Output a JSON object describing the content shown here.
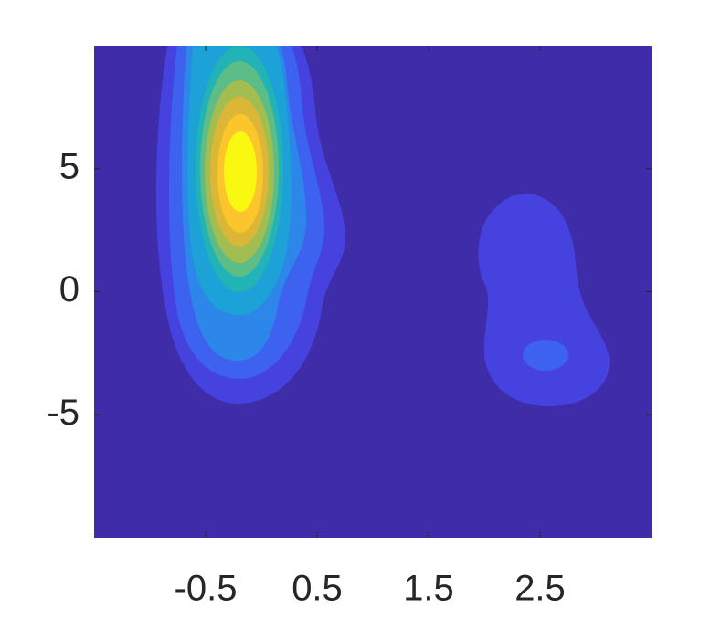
{
  "chart_data": {
    "type": "contourf",
    "xlim": [
      -1.5,
      3.5
    ],
    "xticks": [
      -0.5,
      0.5,
      1.5,
      2.5
    ],
    "ylim": [
      -10,
      10
    ],
    "yticks": [
      -5,
      0,
      5
    ],
    "background": "#3e2ca8",
    "colors": [
      "#4542df",
      "#3c62ef",
      "#2d86ea",
      "#1ca2d6",
      "#22b3b6",
      "#5dbd87",
      "#a2bd50",
      "#dcb737",
      "#fac62c",
      "#f9f810"
    ]
  }
}
